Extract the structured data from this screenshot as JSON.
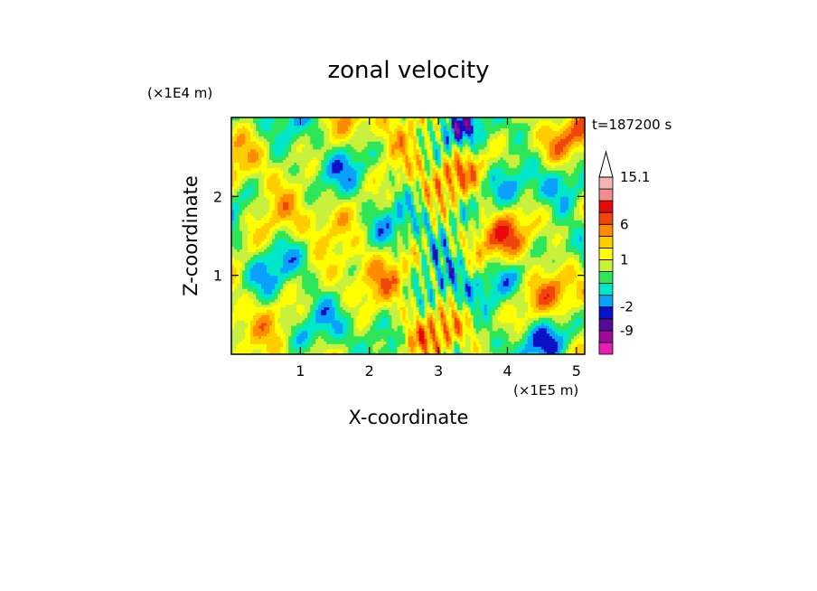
{
  "chart_data": {
    "type": "heatmap",
    "title": "zonal velocity",
    "xlabel": "X-coordinate",
    "ylabel": "Z-coordinate",
    "x_scale_label": "(×1E5 m)",
    "y_scale_label": "(×1E4 m)",
    "time_label": "t=187200 s",
    "xlim": [
      0,
      5.12
    ],
    "ylim": [
      0,
      3.0
    ],
    "x_ticks": [
      {
        "value": 1,
        "label": "1"
      },
      {
        "value": 2,
        "label": "2"
      },
      {
        "value": 3,
        "label": "3"
      },
      {
        "value": 4,
        "label": "4"
      },
      {
        "value": 5,
        "label": "5"
      }
    ],
    "y_ticks": [
      {
        "value": 1,
        "label": "1"
      },
      {
        "value": 2,
        "label": "2"
      }
    ],
    "colorbar": {
      "levels": [
        {
          "color": "#e61eb4",
          "label": ""
        },
        {
          "color": "#a00a9a",
          "label": "-9"
        },
        {
          "color": "#5a0a98",
          "label": ""
        },
        {
          "color": "#0a12c8",
          "label": "-2"
        },
        {
          "color": "#0aa0ff",
          "label": ""
        },
        {
          "color": "#00e6c8",
          "label": ""
        },
        {
          "color": "#2fe65a",
          "label": ""
        },
        {
          "color": "#c8f03c",
          "label": "1"
        },
        {
          "color": "#ffff00",
          "label": ""
        },
        {
          "color": "#ffcd00",
          "label": ""
        },
        {
          "color": "#ff8c00",
          "label": "6"
        },
        {
          "color": "#f0460a",
          "label": ""
        },
        {
          "color": "#e60a0a",
          "label": ""
        },
        {
          "color": "#f08c8c",
          "label": ""
        },
        {
          "color": "#f5b4b4",
          "label": "15.1"
        }
      ],
      "extend_top": true
    }
  }
}
